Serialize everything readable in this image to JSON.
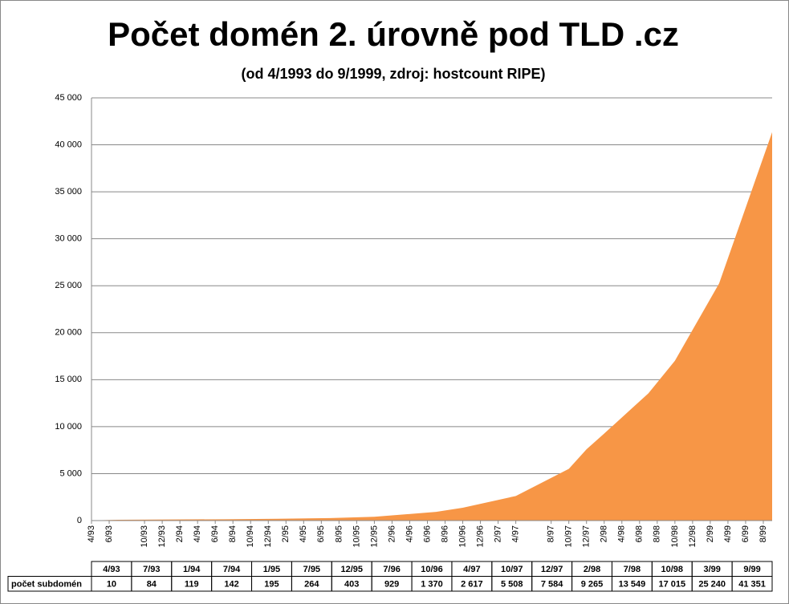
{
  "chart_data": {
    "type": "area",
    "title": "Počet domén 2. úrovně pod TLD .cz",
    "subtitle": "(od 4/1993 do 9/1999, zdroj: hostcount RIPE)",
    "x": [
      "4/93",
      "7/93",
      "1/94",
      "7/94",
      "1/95",
      "7/95",
      "12/95",
      "7/96",
      "10/96",
      "4/97",
      "10/97",
      "12/97",
      "2/98",
      "7/98",
      "10/98",
      "3/99",
      "9/99"
    ],
    "series": [
      {
        "name": "počet subdomén",
        "color": "#f79646",
        "values": [
          10,
          84,
          119,
          142,
          195,
          264,
          403,
          929,
          1370,
          2617,
          5508,
          7584,
          9265,
          13549,
          17015,
          25240,
          41351
        ],
        "value_labels": [
          "10",
          "84",
          "119",
          "142",
          "195",
          "264",
          "403",
          "929",
          "1 370",
          "2 617",
          "5 508",
          "7 584",
          "9 265",
          "13 549",
          "17 015",
          "25 240",
          "41 351"
        ]
      }
    ],
    "xlim": [
      "4/93",
      "9/99"
    ],
    "xticks": [
      "4/93",
      "6/93",
      "10/93",
      "12/93",
      "2/94",
      "4/94",
      "6/94",
      "8/94",
      "10/94",
      "12/94",
      "2/95",
      "4/95",
      "6/95",
      "8/95",
      "10/95",
      "12/95",
      "2/96",
      "4/96",
      "6/96",
      "8/96",
      "10/96",
      "12/96",
      "2/97",
      "4/97",
      "8/97",
      "10/97",
      "12/97",
      "2/98",
      "4/98",
      "6/98",
      "8/98",
      "10/98",
      "12/98",
      "2/99",
      "4/99",
      "6/99",
      "8/99"
    ],
    "ylim": [
      0,
      45000
    ],
    "yticks": [
      0,
      {
        "value": 5000,
        "label": "5 000"
      },
      {
        "value": 10000,
        "label": "10 000"
      },
      {
        "value": 15000,
        "label": "15 000"
      },
      {
        "value": 20000,
        "label": "20 000"
      },
      {
        "value": 25000,
        "label": "25 000"
      },
      {
        "value": 30000,
        "label": "30 000"
      },
      {
        "value": 35000,
        "label": "35 000"
      },
      {
        "value": 40000,
        "label": "40 000"
      },
      {
        "value": 45000,
        "label": "45 000"
      }
    ],
    "grid": true
  }
}
